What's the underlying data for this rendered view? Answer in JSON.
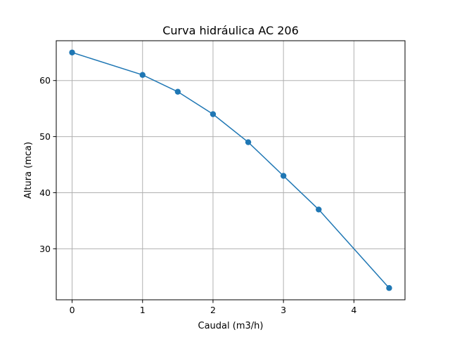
{
  "chart_data": {
    "type": "line",
    "title": "Curva hidráulica AC 206",
    "xlabel": "Caudal (m3/h)",
    "ylabel": "Altura (mca)",
    "x": [
      0,
      1,
      1.5,
      2,
      2.5,
      3,
      3.5,
      4.5
    ],
    "series": [
      {
        "values": [
          65,
          61,
          58,
          54,
          49,
          43,
          37,
          23
        ],
        "color": "#1f77b4",
        "marker": "circle"
      }
    ],
    "xlim": [
      -0.225,
      4.725
    ],
    "ylim": [
      20.9,
      67.1
    ],
    "xticks": [
      "0",
      "1",
      "2",
      "3",
      "4"
    ],
    "yticks": [
      "30",
      "40",
      "50",
      "60"
    ],
    "grid": true
  }
}
